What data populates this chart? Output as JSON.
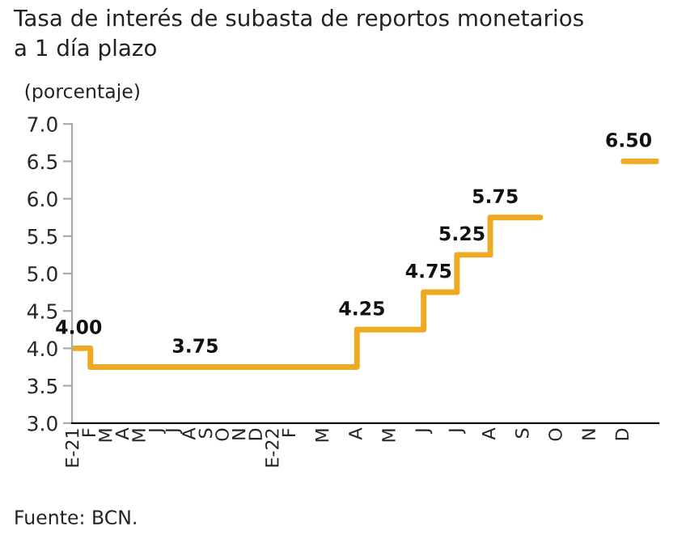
{
  "chart_data": {
    "type": "step",
    "title": "Tasa de interés de subasta de reportos monetarios\na 1 día plazo",
    "ylabel": "(porcentaje)",
    "categories": [
      "E-21",
      "F",
      "M",
      "A",
      "M",
      "J",
      "J",
      "A",
      "S",
      "O",
      "N",
      "D",
      "E-22",
      "F",
      null,
      "M",
      null,
      "A",
      null,
      "M",
      null,
      "J",
      null,
      "J",
      null,
      "A",
      null,
      "S",
      null,
      "O",
      null,
      "N",
      null,
      "D",
      null,
      null
    ],
    "series": [
      {
        "color": "#eeaa22",
        "values": [
          4.0,
          3.75,
          3.75,
          3.75,
          3.75,
          3.75,
          3.75,
          3.75,
          3.75,
          3.75,
          3.75,
          3.75,
          3.75,
          3.75,
          3.75,
          3.75,
          3.75,
          4.25,
          4.25,
          4.25,
          4.25,
          4.75,
          4.75,
          5.25,
          5.25,
          5.75,
          5.75,
          5.75,
          5.75,
          null,
          null,
          null,
          null,
          6.5,
          6.5,
          6.5
        ],
        "value_labels": [
          "4.00",
          null,
          null,
          null,
          null,
          null,
          null,
          "3.75",
          null,
          null,
          null,
          null,
          null,
          null,
          null,
          null,
          null,
          "4.25",
          null,
          null,
          null,
          "4.75",
          null,
          "5.25",
          null,
          "5.75",
          null,
          null,
          null,
          null,
          null,
          null,
          null,
          "6.50",
          null,
          null
        ]
      }
    ],
    "ylim": [
      3.0,
      7.0
    ],
    "yticks": [
      {
        "value": 3.0,
        "label": "3.0"
      },
      {
        "value": 3.5,
        "label": "3.5"
      },
      {
        "value": 4.0,
        "label": "4.0"
      },
      {
        "value": 4.5,
        "label": "4.5"
      },
      {
        "value": 5.0,
        "label": "5.0"
      },
      {
        "value": 5.5,
        "label": "5.5"
      },
      {
        "value": 6.0,
        "label": "6.0"
      },
      {
        "value": 6.5,
        "label": "6.5"
      },
      {
        "value": 7.0,
        "label": "7.0"
      }
    ],
    "grid": false,
    "legend": false,
    "line_style": "solid",
    "marker": "none",
    "annotations": [
      "Fuente: BCN."
    ]
  }
}
